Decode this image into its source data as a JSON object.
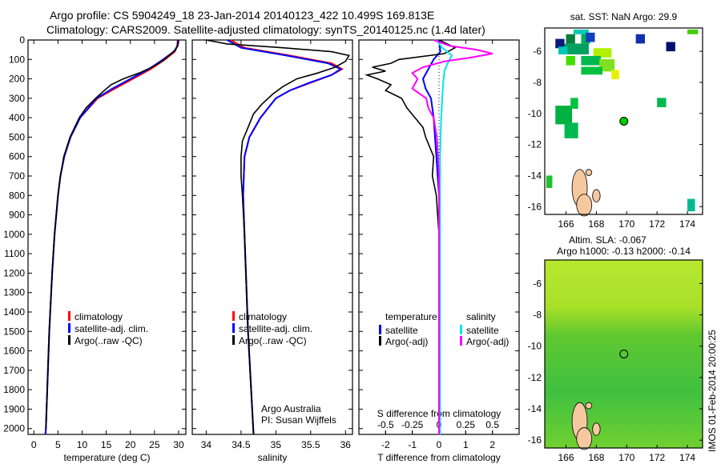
{
  "chart_data": {
    "title_lines": [
      "Argo profile: CS 5904249_18 23-Jan-2014 20140123_422 10.499S 169.813E",
      "Climatology: CARS2009. Satellite-adjusted climatology: synTS_20140125.nc (1.4d later)"
    ],
    "colors": {
      "climatology": "#ff0000",
      "satellite_adj": "#0000ff",
      "argo": "#000000",
      "sal_sat": "#00e5ee",
      "sal_argo": "#ff00ff",
      "land": "#f5c8a0"
    },
    "depth_axis": {
      "ylim": [
        0,
        2030
      ],
      "ticks": [
        0,
        100,
        200,
        300,
        400,
        500,
        600,
        700,
        800,
        900,
        1000,
        1100,
        1200,
        1300,
        1400,
        1500,
        1600,
        1700,
        1800,
        1900,
        2000
      ],
      "reversed": true
    },
    "panels": [
      {
        "type": "line",
        "xlabel": "temperature (deg C)",
        "xlim": [
          -1.2,
          31.5
        ],
        "xticks": [
          0,
          5,
          10,
          15,
          20,
          25,
          30
        ],
        "legend": [
          "climatology",
          "satellite-adj. clim.",
          "Argo(..raw -QC)"
        ],
        "legend_placement": "bottom-center",
        "series": [
          {
            "name": "climatology",
            "color": "climatology",
            "depth": [
              0,
              30,
              60,
              100,
              150,
              200,
              250,
              300,
              400,
              500,
              600,
              700,
              800,
              1000,
              1200,
              1500,
              2000,
              2030
            ],
            "values": [
              29.8,
              29.7,
              29.2,
              27.2,
              24.2,
              20.5,
              16.8,
              13.2,
              9.6,
              7.6,
              6.3,
              5.5,
              5.0,
              4.3,
              3.8,
              3.2,
              2.5,
              2.4
            ]
          },
          {
            "name": "satellite-adj. clim.",
            "color": "satellite_adj",
            "depth": [
              0,
              30,
              60,
              100,
              150,
              200,
              250,
              300,
              400,
              500,
              600,
              700,
              800,
              1000,
              1200,
              1500,
              2000,
              2030
            ],
            "values": [
              29.9,
              29.8,
              29.0,
              26.8,
              23.8,
              20.0,
              16.3,
              13.0,
              9.6,
              7.6,
              6.3,
              5.5,
              5.0,
              4.3,
              3.8,
              3.2,
              2.5,
              2.4
            ]
          },
          {
            "name": "Argo(..raw -QC)",
            "color": "argo",
            "depth": [
              0,
              20,
              50,
              80,
              110,
              140,
              170,
              200,
              230,
              260,
              300,
              350,
              400,
              500,
              600,
              700,
              800,
              1000,
              1200,
              1500,
              2000
            ],
            "values": [
              30.0,
              29.9,
              29.4,
              28.0,
              26.5,
              24.5,
              21.8,
              18.5,
              16.0,
              14.6,
              12.8,
              10.8,
              9.4,
              7.5,
              6.2,
              5.5,
              5.0,
              4.3,
              3.8,
              3.2,
              2.5
            ]
          }
        ]
      },
      {
        "type": "line",
        "xlabel": "salinity",
        "xlim": [
          33.8,
          36.1
        ],
        "xticks": [
          34,
          34.5,
          35,
          35.5,
          36
        ],
        "legend": [
          "climatology",
          "satellite-adj. clim.",
          "Argo(..raw -QC)"
        ],
        "legend_placement": "bottom-center",
        "annotations": [
          "Argo Australia",
          "PI: Susan Wijffels"
        ],
        "series": [
          {
            "name": "climatology",
            "color": "climatology",
            "depth": [
              0,
              40,
              80,
              120,
              150,
              180,
              220,
              260,
              300,
              400,
              500,
              600,
              800,
              1000,
              1500,
              2030
            ],
            "values": [
              34.35,
              34.55,
              35.2,
              35.8,
              35.95,
              35.8,
              35.5,
              35.2,
              35.0,
              34.78,
              34.62,
              34.55,
              34.53,
              34.55,
              34.6,
              34.68
            ]
          },
          {
            "name": "satellite-adj. clim.",
            "color": "satellite_adj",
            "depth": [
              0,
              40,
              80,
              120,
              150,
              180,
              220,
              260,
              300,
              400,
              500,
              600,
              800,
              1000,
              1500,
              2030
            ],
            "values": [
              34.3,
              34.5,
              35.15,
              35.75,
              35.93,
              35.8,
              35.48,
              35.2,
              35.0,
              34.78,
              34.62,
              34.55,
              34.53,
              34.55,
              34.6,
              34.68
            ]
          },
          {
            "name": "Argo(..raw -QC)",
            "color": "argo",
            "depth": [
              0,
              20,
              40,
              60,
              80,
              110,
              140,
              170,
              200,
              240,
              280,
              330,
              380,
              450,
              520,
              600,
              700,
              800,
              1000,
              1500,
              2030
            ],
            "values": [
              34.0,
              34.3,
              35.1,
              35.8,
              36.05,
              36.0,
              35.85,
              35.6,
              35.3,
              35.1,
              34.95,
              34.8,
              34.68,
              34.6,
              34.52,
              34.5,
              34.5,
              34.52,
              34.55,
              34.6,
              34.68
            ]
          }
        ]
      },
      {
        "type": "line",
        "xlabel": "T difference from climatology",
        "xlim": [
          -3,
          3
        ],
        "xticks": [
          -2,
          -1,
          0,
          1,
          2
        ],
        "secondary_xlabel": "S difference from climatology",
        "secondary_xticks": [
          -0.5,
          -0.25,
          0,
          0.25,
          0.5
        ],
        "s_to_t_scale": 4,
        "legend_headers": [
          "temperature",
          "salinity"
        ],
        "legend": [
          "satellite",
          "Argo(-adj)",
          "satellite",
          "Argo(-adj)"
        ],
        "series": [
          {
            "name": "temperature satellite",
            "color": "satellite_adj",
            "depth": [
              0,
              60,
              100,
              150,
              200,
              250,
              300,
              400,
              500,
              600,
              800,
              1000,
              2030
            ],
            "values": [
              0,
              0.05,
              -0.2,
              -0.4,
              -0.6,
              -0.5,
              -0.3,
              -0.2,
              -0.15,
              -0.1,
              0,
              0,
              0
            ]
          },
          {
            "name": "temperature Argo(-adj)",
            "color": "argo",
            "depth": [
              0,
              40,
              70,
              100,
              120,
              140,
              160,
              180,
              200,
              230,
              260,
              300,
              350,
              400,
              450,
              500,
              600,
              700,
              800,
              900,
              1000,
              2030
            ],
            "values": [
              0,
              0.6,
              0.2,
              -1.5,
              -1.8,
              -2.5,
              -2.0,
              -2.7,
              -2.3,
              -1.8,
              -2.0,
              -1.4,
              -1.2,
              -0.9,
              -0.6,
              -0.5,
              -0.2,
              -0.25,
              -0.1,
              -0.05,
              0,
              0
            ]
          },
          {
            "name": "salinity satellite",
            "color": "sal_sat",
            "depth": [
              0,
              40,
              80,
              120,
              160,
              220,
              300,
              400,
              600,
              1000,
              2030
            ],
            "values": [
              -0.02,
              0.03,
              0.12,
              0.08,
              0.05,
              0.04,
              0.03,
              0.02,
              0.01,
              0.01,
              0.01
            ]
          },
          {
            "name": "salinity Argo(-adj)",
            "color": "sal_argo",
            "depth": [
              0,
              30,
              50,
              70,
              90,
              110,
              140,
              170,
              200,
              250,
              300,
              350,
              400,
              500,
              600,
              700,
              1000,
              2030
            ],
            "values": [
              -0.05,
              0.1,
              0.35,
              0.5,
              0.3,
              0.05,
              -0.15,
              -0.25,
              -0.2,
              -0.25,
              -0.12,
              -0.1,
              -0.05,
              -0.02,
              -0.01,
              0,
              0,
              0
            ]
          }
        ]
      }
    ],
    "maps": [
      {
        "title": "sat. SST: NaN Argo: 29.9",
        "lon_ticks": [
          166,
          168,
          170,
          172,
          174
        ],
        "lat_ticks": [
          -6,
          -8,
          -10,
          -12,
          -14,
          -16
        ],
        "lon_range": [
          164.6,
          175
        ],
        "lat_range": [
          -4.5,
          -16.5
        ],
        "argo_position": [
          169.813,
          -10.499
        ]
      },
      {
        "title_lines": [
          "Altim. SLA: -0.067",
          "Argo h1000: -0.13 h2000: -0.14"
        ],
        "lon_ticks": [
          166,
          168,
          170,
          172,
          174
        ],
        "lat_ticks": [
          -6,
          -8,
          -10,
          -12,
          -14,
          -16
        ],
        "lon_range": [
          164.6,
          175
        ],
        "lat_range": [
          -4.5,
          -16.5
        ],
        "argo_position": [
          169.813,
          -10.499
        ]
      }
    ],
    "footer_vertical": "IMOS 01-Feb-2014 20:00:25"
  }
}
